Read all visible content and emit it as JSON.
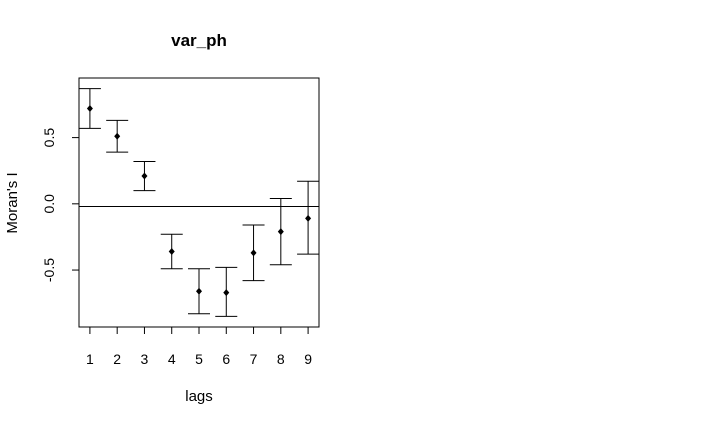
{
  "chart_data": {
    "type": "scatter",
    "title": "var_ph",
    "xlabel": "lags",
    "ylabel": "Moran's I",
    "x": [
      1,
      2,
      3,
      4,
      5,
      6,
      7,
      8,
      9
    ],
    "y": [
      0.72,
      0.51,
      0.21,
      -0.36,
      -0.66,
      -0.67,
      -0.37,
      -0.21,
      -0.11
    ],
    "ci_lower": [
      0.57,
      0.39,
      0.1,
      -0.49,
      -0.83,
      -0.85,
      -0.58,
      -0.46,
      -0.38
    ],
    "ci_upper": [
      0.87,
      0.63,
      0.32,
      -0.23,
      -0.49,
      -0.48,
      -0.16,
      0.04,
      0.17
    ],
    "reference_line": -0.02,
    "xlim": [
      0.6,
      9.4
    ],
    "ylim": [
      -0.93,
      0.95
    ],
    "x_ticks": [
      "1",
      "2",
      "3",
      "4",
      "5",
      "6",
      "7",
      "8",
      "9"
    ],
    "y_ticks": [
      "-0.5",
      "0.0",
      "0.5"
    ],
    "y_tick_values": [
      -0.5,
      0.0,
      0.5
    ],
    "grid": false,
    "legend": "none"
  }
}
